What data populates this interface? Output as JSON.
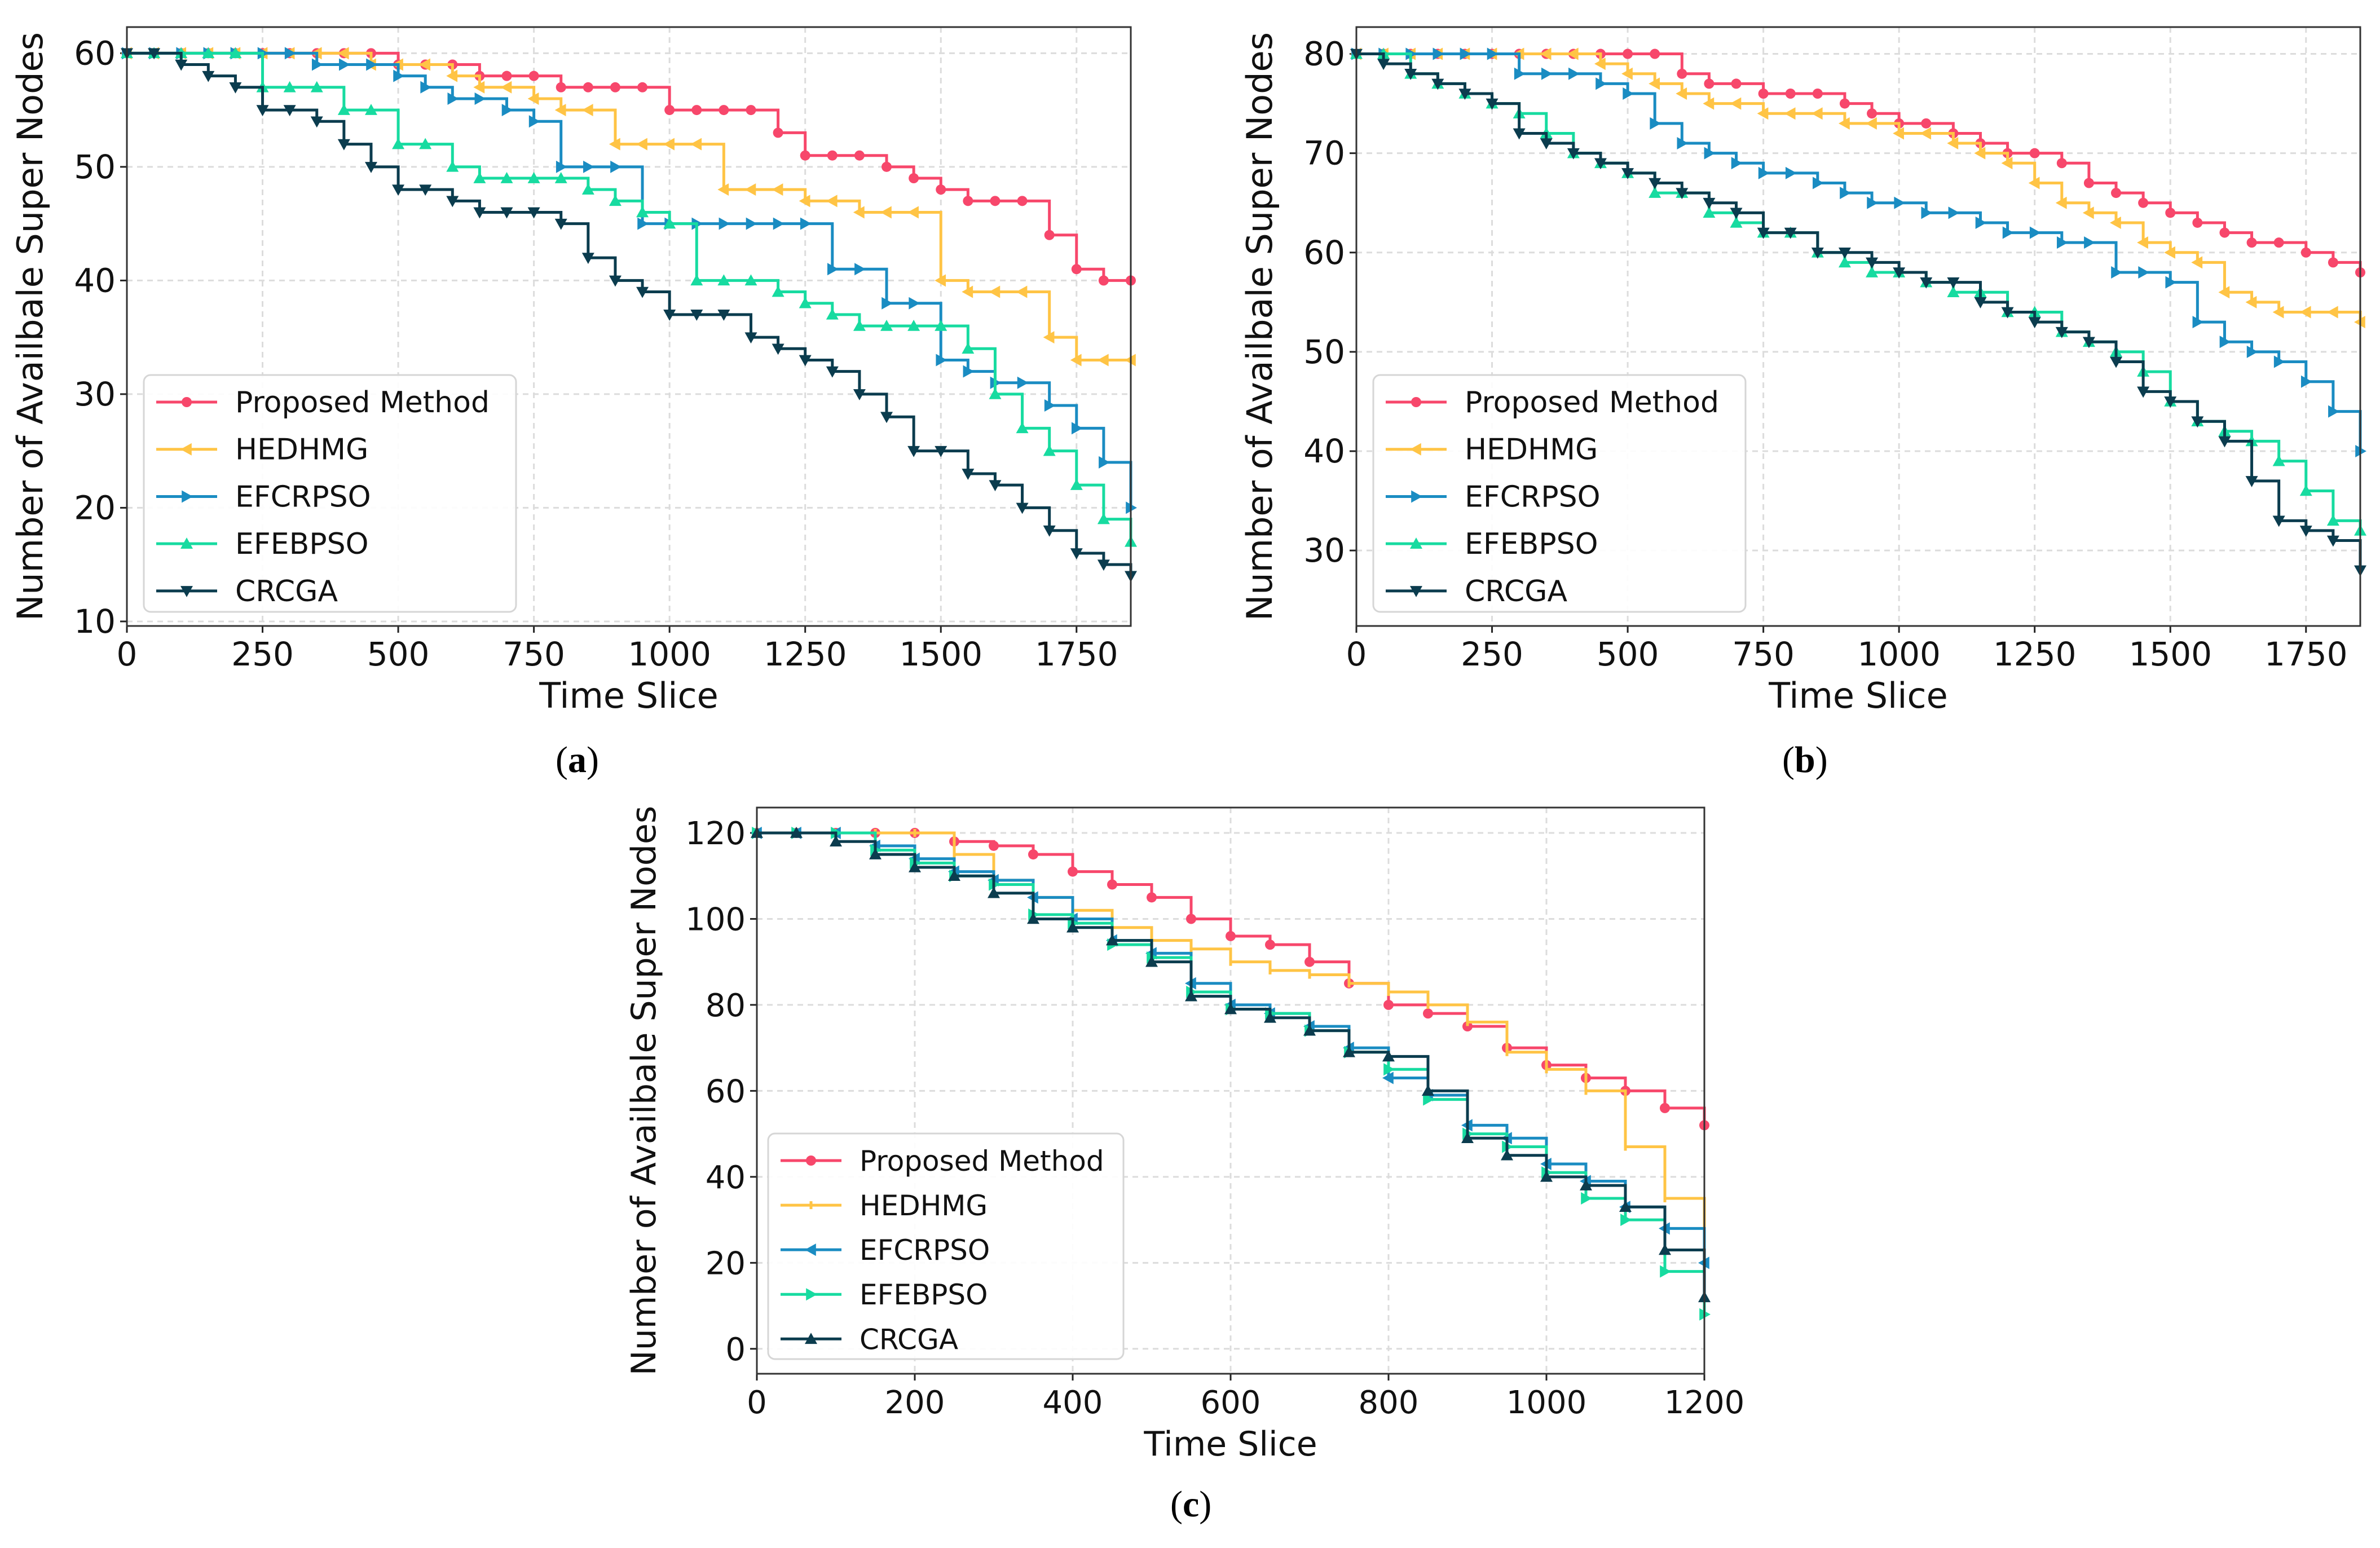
{
  "chart_data": [
    {
      "id": "a",
      "panel_label": "a",
      "type": "line",
      "step": "post",
      "xlabel": "Time Slice",
      "ylabel": "Number of Availbale Super Nodes",
      "xlim": [
        0,
        1850
      ],
      "ylim": [
        9.6,
        62.3
      ],
      "xticks": [
        0,
        250,
        500,
        750,
        1000,
        1250,
        1500,
        1750
      ],
      "yticks": [
        10,
        20,
        30,
        40,
        50,
        60
      ],
      "grid": true,
      "legend_position": "lower-left",
      "x": [
        0,
        50,
        100,
        150,
        200,
        250,
        300,
        350,
        400,
        450,
        500,
        550,
        600,
        650,
        700,
        750,
        800,
        850,
        900,
        950,
        1000,
        1050,
        1100,
        1150,
        1200,
        1250,
        1300,
        1350,
        1400,
        1450,
        1500,
        1550,
        1600,
        1650,
        1700,
        1750,
        1800,
        1850
      ],
      "series": [
        {
          "name": "Proposed Method",
          "color": "#f7476b",
          "marker": "circle",
          "values": [
            60,
            60,
            60,
            60,
            60,
            60,
            60,
            60,
            60,
            60,
            59,
            59,
            59,
            58,
            58,
            58,
            57,
            57,
            57,
            57,
            55,
            55,
            55,
            55,
            53,
            51,
            51,
            51,
            50,
            49,
            48,
            47,
            47,
            47,
            44,
            41,
            40,
            40
          ]
        },
        {
          "name": "HEDHMG",
          "color": "#ffc445",
          "marker": "tri-left",
          "values": [
            60,
            60,
            60,
            60,
            60,
            60,
            60,
            60,
            60,
            59,
            59,
            59,
            58,
            57,
            57,
            56,
            55,
            55,
            52,
            52,
            52,
            52,
            48,
            48,
            48,
            47,
            47,
            46,
            46,
            46,
            40,
            39,
            39,
            39,
            35,
            33,
            33,
            33
          ]
        },
        {
          "name": "EFCRPSO",
          "color": "#1a8cc2",
          "marker": "tri-right",
          "values": [
            60,
            60,
            60,
            60,
            60,
            60,
            60,
            59,
            59,
            59,
            58,
            57,
            56,
            56,
            55,
            54,
            50,
            50,
            50,
            45,
            45,
            45,
            45,
            45,
            45,
            45,
            41,
            41,
            38,
            38,
            33,
            32,
            31,
            31,
            29,
            27,
            24,
            20
          ]
        },
        {
          "name": "EFEBPSO",
          "color": "#17dba0",
          "marker": "tri-up",
          "values": [
            60,
            60,
            60,
            60,
            60,
            57,
            57,
            57,
            55,
            55,
            52,
            52,
            50,
            49,
            49,
            49,
            49,
            48,
            47,
            46,
            45,
            40,
            40,
            40,
            39,
            38,
            37,
            36,
            36,
            36,
            36,
            34,
            30,
            27,
            25,
            22,
            19,
            17
          ]
        },
        {
          "name": "CRCGA",
          "color": "#0b3c4e",
          "marker": "tri-down",
          "values": [
            60,
            60,
            59,
            58,
            57,
            55,
            55,
            54,
            52,
            50,
            48,
            48,
            47,
            46,
            46,
            46,
            45,
            42,
            40,
            39,
            37,
            37,
            37,
            35,
            34,
            33,
            32,
            30,
            28,
            25,
            25,
            23,
            22,
            20,
            18,
            16,
            15,
            14
          ]
        }
      ]
    },
    {
      "id": "b",
      "panel_label": "b",
      "type": "line",
      "step": "post",
      "xlabel": "Time Slice",
      "ylabel": "Number of Availbale Super Nodes",
      "xlim": [
        0,
        1850
      ],
      "ylim": [
        22.4,
        82.7
      ],
      "xticks": [
        0,
        250,
        500,
        750,
        1000,
        1250,
        1500,
        1750
      ],
      "yticks": [
        30,
        40,
        50,
        60,
        70,
        80
      ],
      "grid": true,
      "legend_position": "lower-left",
      "x": [
        0,
        50,
        100,
        150,
        200,
        250,
        300,
        350,
        400,
        450,
        500,
        550,
        600,
        650,
        700,
        750,
        800,
        850,
        900,
        950,
        1000,
        1050,
        1100,
        1150,
        1200,
        1250,
        1300,
        1350,
        1400,
        1450,
        1500,
        1550,
        1600,
        1650,
        1700,
        1750,
        1800,
        1850
      ],
      "series": [
        {
          "name": "Proposed Method",
          "color": "#f7476b",
          "marker": "circle",
          "values": [
            80,
            80,
            80,
            80,
            80,
            80,
            80,
            80,
            80,
            80,
            80,
            80,
            78,
            77,
            77,
            76,
            76,
            76,
            75,
            74,
            73,
            73,
            72,
            71,
            70,
            70,
            69,
            67,
            66,
            65,
            64,
            63,
            62,
            61,
            61,
            60,
            59,
            58
          ]
        },
        {
          "name": "HEDHMG",
          "color": "#ffc445",
          "marker": "tri-left",
          "values": [
            80,
            80,
            80,
            80,
            80,
            80,
            80,
            80,
            80,
            79,
            78,
            77,
            76,
            75,
            75,
            74,
            74,
            74,
            73,
            73,
            72,
            72,
            71,
            70,
            69,
            67,
            65,
            64,
            63,
            61,
            60,
            59,
            56,
            55,
            54,
            54,
            54,
            53
          ]
        },
        {
          "name": "EFCRPSO",
          "color": "#1a8cc2",
          "marker": "tri-right",
          "values": [
            80,
            80,
            80,
            80,
            80,
            80,
            78,
            78,
            78,
            77,
            76,
            73,
            71,
            70,
            69,
            68,
            68,
            67,
            66,
            65,
            65,
            64,
            64,
            63,
            62,
            62,
            61,
            61,
            58,
            58,
            57,
            53,
            51,
            50,
            49,
            47,
            44,
            40
          ]
        },
        {
          "name": "EFEBPSO",
          "color": "#17dba0",
          "marker": "tri-up",
          "values": [
            80,
            80,
            78,
            77,
            76,
            75,
            74,
            72,
            70,
            69,
            68,
            66,
            66,
            64,
            63,
            62,
            62,
            60,
            59,
            58,
            58,
            57,
            56,
            56,
            54,
            54,
            52,
            51,
            50,
            48,
            45,
            43,
            42,
            41,
            39,
            36,
            33,
            32
          ]
        },
        {
          "name": "CRCGA",
          "color": "#0b3c4e",
          "marker": "tri-down",
          "values": [
            80,
            79,
            78,
            77,
            76,
            75,
            72,
            71,
            70,
            69,
            68,
            67,
            66,
            65,
            64,
            62,
            62,
            60,
            60,
            59,
            58,
            57,
            57,
            55,
            54,
            53,
            52,
            51,
            49,
            46,
            45,
            43,
            41,
            37,
            33,
            32,
            31,
            28
          ]
        }
      ]
    },
    {
      "id": "c",
      "panel_label": "c",
      "type": "line",
      "step": "post",
      "xlabel": "Time Slice",
      "ylabel": "Number of Availbale Super Nodes",
      "xlim": [
        0,
        1200
      ],
      "ylim": [
        -5.8,
        125.9
      ],
      "xticks": [
        0,
        200,
        400,
        600,
        800,
        1000,
        1200
      ],
      "yticks": [
        0,
        20,
        40,
        60,
        80,
        100,
        120
      ],
      "grid": true,
      "legend_position": "lower-left",
      "x": [
        0,
        50,
        100,
        150,
        200,
        250,
        300,
        350,
        400,
        450,
        500,
        550,
        600,
        650,
        700,
        750,
        800,
        850,
        900,
        950,
        1000,
        1050,
        1100,
        1150,
        1200
      ],
      "series": [
        {
          "name": "Proposed Method",
          "color": "#f7476b",
          "marker": "circle",
          "values": [
            120,
            120,
            120,
            120,
            120,
            118,
            117,
            115,
            111,
            108,
            105,
            100,
            96,
            94,
            90,
            85,
            80,
            78,
            75,
            70,
            66,
            63,
            60,
            56,
            52
          ]
        },
        {
          "name": "HEDHMG",
          "color": "#ffc445",
          "marker": "tick",
          "values": [
            120,
            120,
            120,
            120,
            120,
            115,
            109,
            105,
            102,
            98,
            95,
            93,
            90,
            88,
            87,
            85,
            83,
            80,
            76,
            69,
            65,
            60,
            47,
            35,
            28
          ]
        },
        {
          "name": "EFCRPSO",
          "color": "#1a8cc2",
          "marker": "tri-left",
          "values": [
            120,
            120,
            120,
            117,
            114,
            111,
            109,
            105,
            100,
            95,
            92,
            85,
            80,
            78,
            75,
            70,
            63,
            59,
            52,
            49,
            43,
            39,
            33,
            28,
            20
          ]
        },
        {
          "name": "EFEBPSO",
          "color": "#17dba0",
          "marker": "tri-right",
          "values": [
            120,
            120,
            120,
            116,
            113,
            110,
            108,
            101,
            99,
            94,
            91,
            83,
            79,
            78,
            74,
            69,
            65,
            58,
            50,
            47,
            41,
            35,
            30,
            18,
            8
          ]
        },
        {
          "name": "CRCGA",
          "color": "#0b3c4e",
          "marker": "tri-up",
          "values": [
            120,
            120,
            118,
            115,
            112,
            110,
            106,
            100,
            98,
            95,
            90,
            82,
            79,
            77,
            74,
            69,
            68,
            60,
            49,
            45,
            40,
            38,
            33,
            23,
            12
          ]
        }
      ]
    }
  ]
}
